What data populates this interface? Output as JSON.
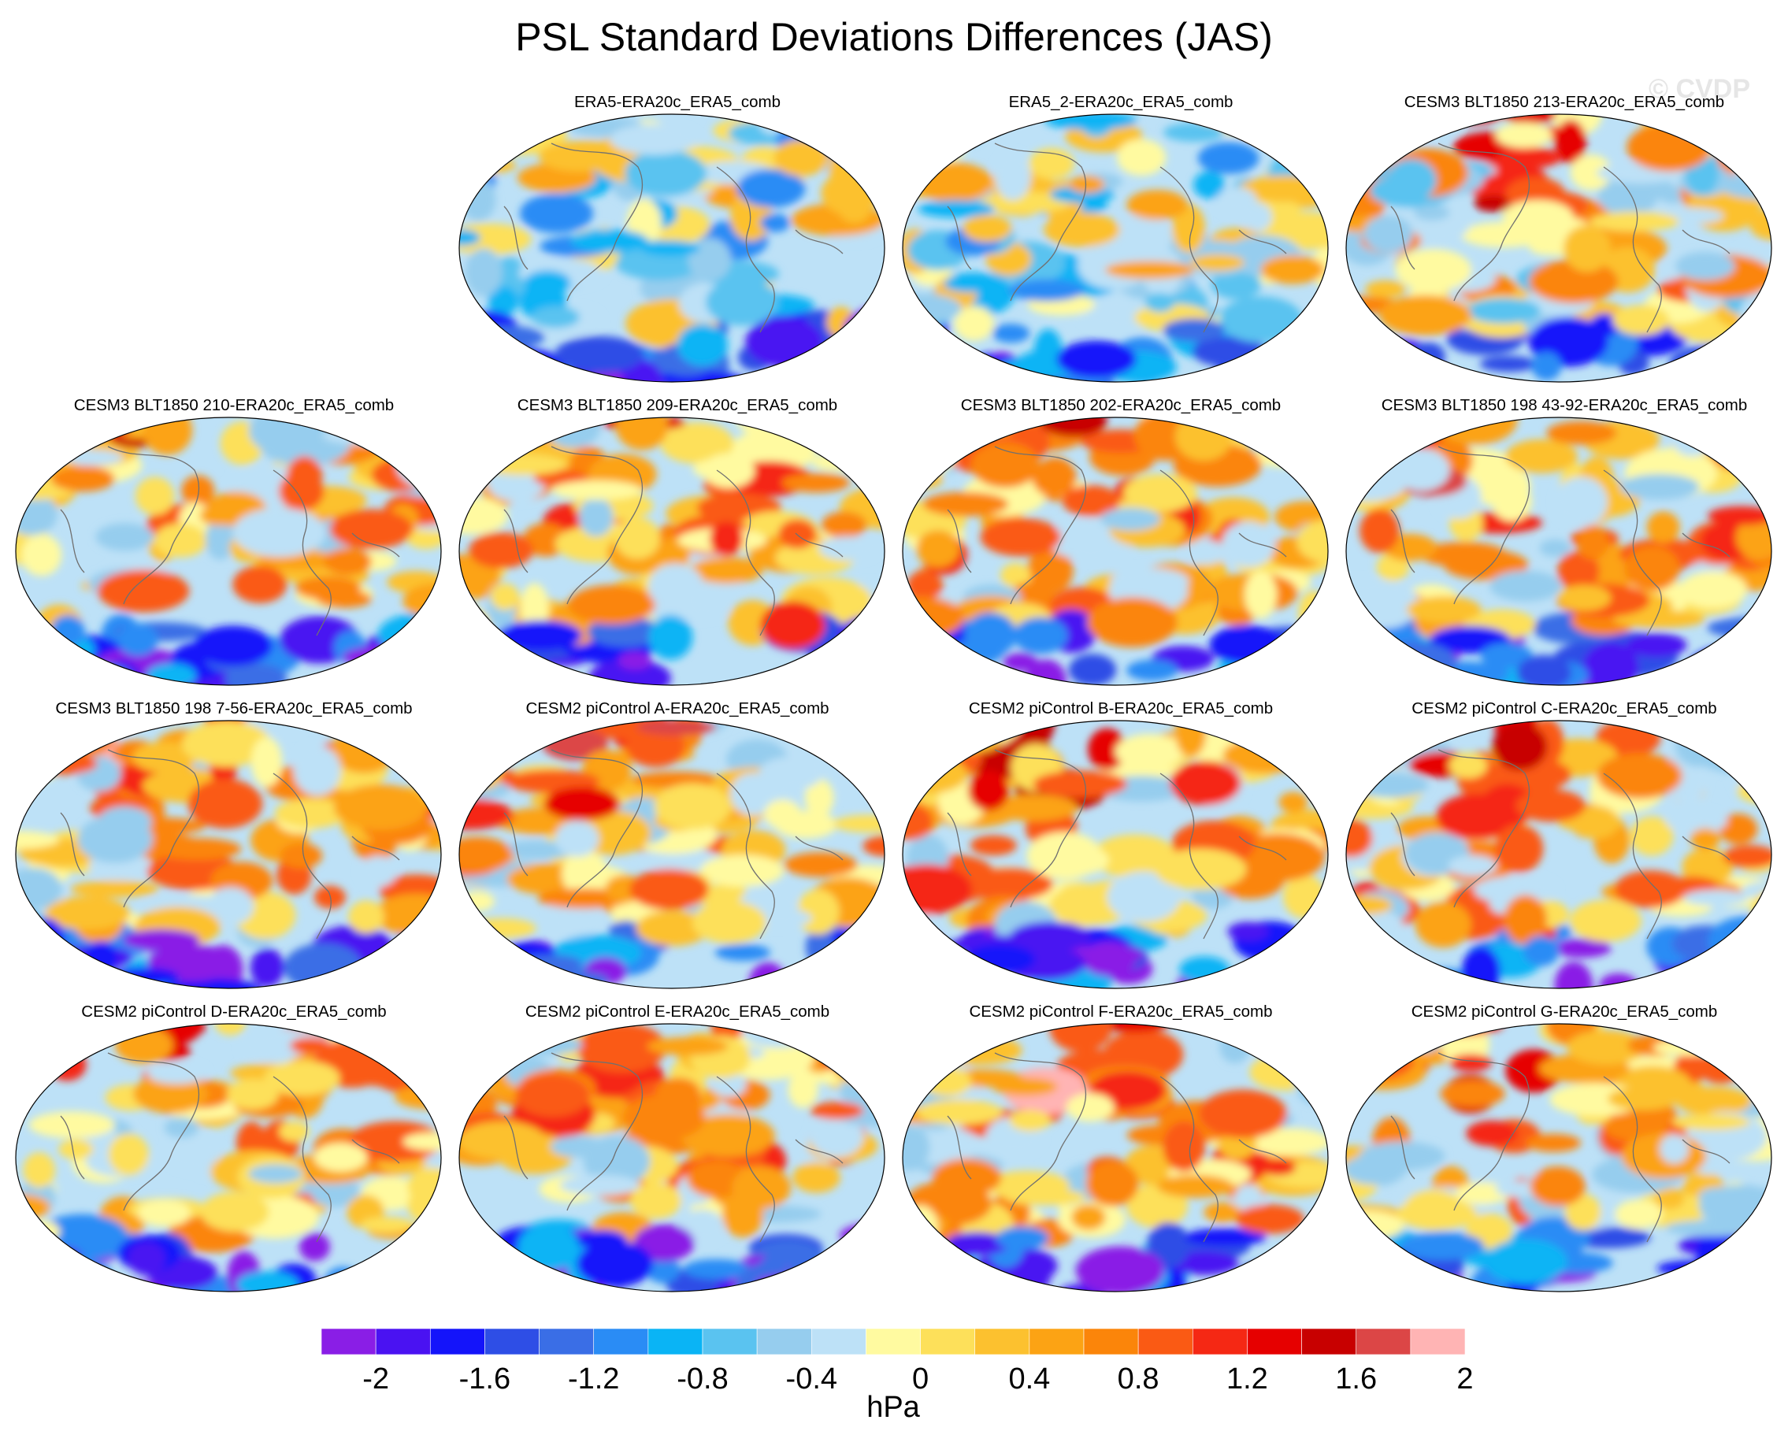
{
  "title": "PSL Standard Deviations Differences (JAS)",
  "watermark": "© CVDP",
  "chart_data": {
    "type": "heatmap",
    "title": "PSL Standard Deviations Differences (JAS)",
    "projection": "global map (Robinson-style ellipse)",
    "panels": [
      {
        "title": "ERA5-ERA20c_ERA5_comb"
      },
      {
        "title": "ERA5_2-ERA20c_ERA5_comb"
      },
      {
        "title": "CESM3 BLT1850 213-ERA20c_ERA5_comb"
      },
      {
        "title": "CESM3 BLT1850 210-ERA20c_ERA5_comb"
      },
      {
        "title": "CESM3 BLT1850 209-ERA20c_ERA5_comb"
      },
      {
        "title": "CESM3 BLT1850 202-ERA20c_ERA5_comb"
      },
      {
        "title": "CESM3 BLT1850 198 43-92-ERA20c_ERA5_comb"
      },
      {
        "title": "CESM3 BLT1850 198 7-56-ERA20c_ERA5_comb"
      },
      {
        "title": "CESM2 piControl A-ERA20c_ERA5_comb"
      },
      {
        "title": "CESM2 piControl B-ERA20c_ERA5_comb"
      },
      {
        "title": "CESM2 piControl C-ERA20c_ERA5_comb"
      },
      {
        "title": "CESM2 piControl D-ERA20c_ERA5_comb"
      },
      {
        "title": "CESM2 piControl E-ERA20c_ERA5_comb"
      },
      {
        "title": "CESM2 piControl F-ERA20c_ERA5_comb"
      },
      {
        "title": "CESM2 piControl G-ERA20c_ERA5_comb"
      }
    ],
    "colorbar": {
      "levels": [
        -2.2,
        -2.0,
        -1.8,
        -1.6,
        -1.4,
        -1.2,
        -1.0,
        -0.8,
        -0.6,
        -0.4,
        -0.2,
        0.0,
        0.2,
        0.4,
        0.6,
        0.8,
        1.0,
        1.2,
        1.4,
        1.6,
        1.8,
        2.0,
        2.2
      ],
      "colors": [
        "#8a1ee6",
        "#4a12f2",
        "#1414fa",
        "#2e4ee6",
        "#3a6ee6",
        "#2a8cf5",
        "#0ab4f5",
        "#5ac3f0",
        "#96cdee",
        "#bde1f7",
        "#fffaa0",
        "#fde05a",
        "#fcc12f",
        "#fca314",
        "#fb850a",
        "#fa5a14",
        "#f52814",
        "#e60000",
        "#c80000",
        "#dc4646",
        "#ffb4b4"
      ],
      "tick_labels": [
        "-2",
        "-1.6",
        "-1.2",
        "-0.8",
        "-0.4",
        "0",
        "0.4",
        "0.8",
        "1.2",
        "1.6",
        "2"
      ],
      "tick_values": [
        -2.0,
        -1.6,
        -1.2,
        -0.8,
        -0.4,
        0.0,
        0.4,
        0.8,
        1.2,
        1.6,
        2.0
      ],
      "unit": "hPa"
    }
  }
}
